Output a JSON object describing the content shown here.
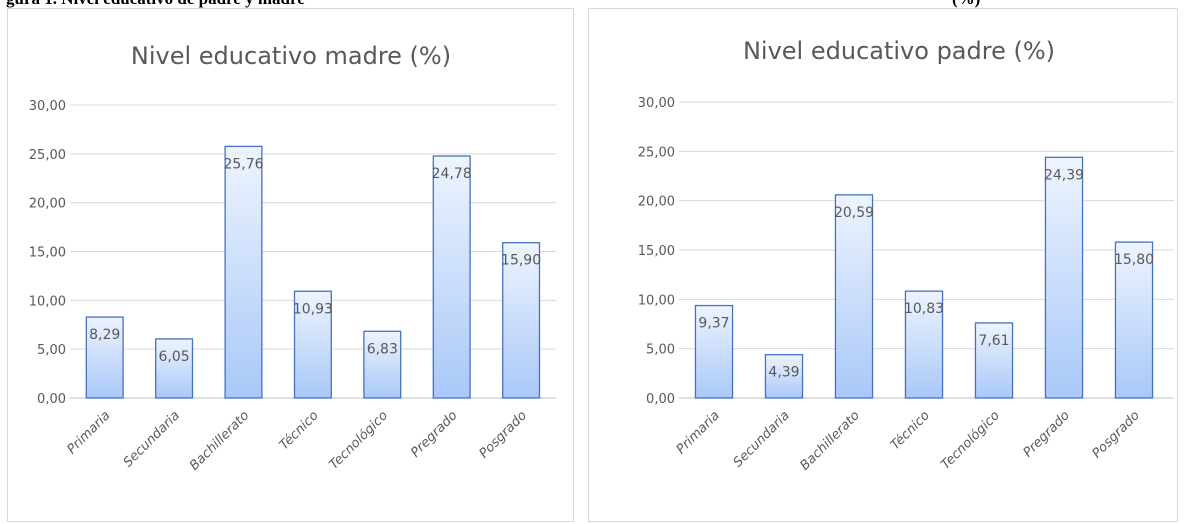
{
  "caption": {
    "left_text": "gura 1. Nivel educativo de padre y madre",
    "right_text": "(%)"
  },
  "chart_data": [
    {
      "type": "bar",
      "title": "Nivel educativo madre (%)",
      "categories": [
        "Primaria",
        "Secundaria",
        "Bachillerato",
        "Técnico",
        "Tecnológico",
        "Pregrado",
        "Posgrado"
      ],
      "values": [
        8.29,
        6.05,
        25.76,
        10.93,
        6.83,
        24.78,
        15.9
      ],
      "value_labels": [
        "8,29",
        "6,05",
        "25,76",
        "10,93",
        "6,83",
        "24,78",
        "15,90"
      ],
      "yticks": [
        "0,00",
        "5,00",
        "10,00",
        "15,00",
        "20,00",
        "25,00",
        "30,00"
      ],
      "ylim": [
        0,
        30
      ],
      "grid": true,
      "bar_fill_top": "#eef4fe",
      "bar_fill_bottom": "#a9c8f8",
      "bar_border": "#4472c4"
    },
    {
      "type": "bar",
      "title": "Nivel educativo padre (%)",
      "categories": [
        "Primaria",
        "Secundaria",
        "Bachillerato",
        "Técnico",
        "Tecnológico",
        "Pregrado",
        "Posgrado"
      ],
      "values": [
        9.37,
        4.39,
        20.59,
        10.83,
        7.61,
        24.39,
        15.8
      ],
      "value_labels": [
        "9,37",
        "4,39",
        "20,59",
        "10,83",
        "7,61",
        "24,39",
        "15,80"
      ],
      "yticks": [
        "0,00",
        "5,00",
        "10,00",
        "15,00",
        "20,00",
        "25,00",
        "30,00"
      ],
      "ylim": [
        0,
        30
      ],
      "grid": true,
      "bar_fill_top": "#eef4fe",
      "bar_fill_bottom": "#a9c8f8",
      "bar_border": "#4472c4"
    }
  ]
}
